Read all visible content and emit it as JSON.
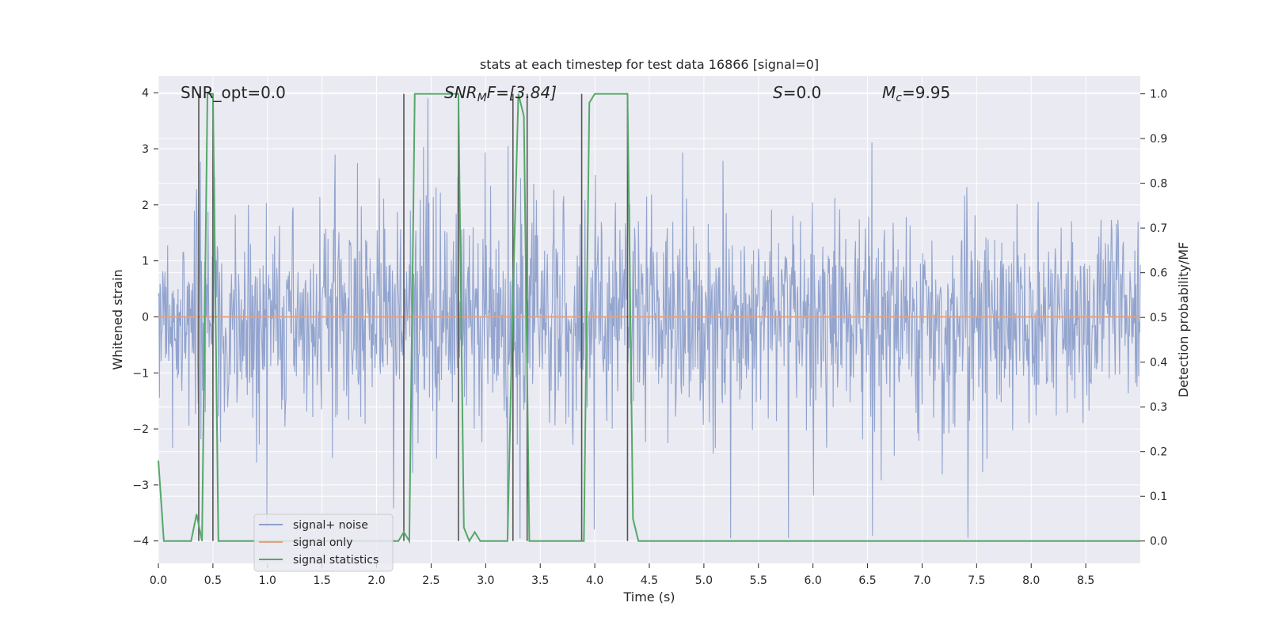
{
  "chart_data": {
    "type": "line",
    "title": "stats at each timestep for test data 16866 [signal=0]",
    "xlabel": "Time (s)",
    "ylabel": "Whitened strain",
    "ylabel_right": "Detection probability/MF",
    "xlim": [
      0.0,
      9.0
    ],
    "ylim": [
      -4.4,
      4.3
    ],
    "ylim_right": [
      -0.05,
      1.04
    ],
    "grid": true,
    "legend_position": "lower-left",
    "x_ticks": [
      0.0,
      0.5,
      1.0,
      1.5,
      2.0,
      2.5,
      3.0,
      3.5,
      4.0,
      4.5,
      5.0,
      5.5,
      6.0,
      6.5,
      7.0,
      7.5,
      8.0,
      8.5
    ],
    "x_tick_labels": [
      "0.0",
      "0.5",
      "1.0",
      "1.5",
      "2.0",
      "2.5",
      "3.0",
      "3.5",
      "4.0",
      "4.5",
      "5.0",
      "5.5",
      "6.0",
      "6.5",
      "7.0",
      "7.5",
      "8.0",
      "8.5"
    ],
    "y_ticks": [
      4,
      3,
      2,
      1,
      0,
      -1,
      -2,
      -3,
      -4
    ],
    "y_tick_labels": [
      "4",
      "3",
      "2",
      "1",
      "0",
      "−1",
      "−2",
      "−3",
      "−4"
    ],
    "y_ticks_right": [
      1.0,
      0.9,
      0.8,
      0.7,
      0.6,
      0.5,
      0.4,
      0.3,
      0.2,
      0.1,
      0.0
    ],
    "y_tick_labels_right": [
      "1.0",
      "0.9",
      "0.8",
      "0.7",
      "0.6",
      "0.5",
      "0.4",
      "0.3",
      "0.2",
      "0.1",
      "0.0"
    ],
    "annotations": {
      "snr_opt": "SNR_opt=0.0",
      "snr_mf_main": "SNR",
      "snr_mf_sub": "M",
      "snr_mf_rest": "F=[3.84]",
      "s_var": "S",
      "s_rest": "=0.0",
      "mc_main": "M",
      "mc_sub": "c",
      "mc_rest": "=9.95"
    },
    "series": [
      {
        "name": "signal+ noise",
        "color": "#8da0cb",
        "axis": "left",
        "kind": "noise",
        "sigma": 0.85,
        "n_samples": 1800
      },
      {
        "name": "signal only",
        "color": "#e5a17e",
        "axis": "left",
        "x": [
          0.0,
          9.0
        ],
        "y": [
          0.0,
          0.0
        ]
      },
      {
        "name": "signal statistics",
        "color": "#55a868",
        "axis": "right",
        "x": [
          0.0,
          0.05,
          0.1,
          0.15,
          0.2,
          0.25,
          0.3,
          0.35,
          0.4,
          0.45,
          0.5,
          0.55,
          0.6,
          0.65,
          0.7,
          0.75,
          0.8,
          0.85,
          0.9,
          0.95,
          1.0,
          1.05,
          1.1,
          1.15,
          1.2,
          1.25,
          1.3,
          1.35,
          1.4,
          1.45,
          1.5,
          1.55,
          1.6,
          1.65,
          1.7,
          1.75,
          1.8,
          1.85,
          1.9,
          1.95,
          2.0,
          2.05,
          2.1,
          2.15,
          2.2,
          2.25,
          2.3,
          2.35,
          2.4,
          2.45,
          2.5,
          2.55,
          2.6,
          2.65,
          2.7,
          2.75,
          2.8,
          2.85,
          2.9,
          2.95,
          3.0,
          3.05,
          3.1,
          3.15,
          3.2,
          3.25,
          3.3,
          3.35,
          3.4,
          3.45,
          3.5,
          3.55,
          3.6,
          3.65,
          3.7,
          3.75,
          3.8,
          3.85,
          3.9,
          3.95,
          4.0,
          4.05,
          4.1,
          4.15,
          4.2,
          4.25,
          4.3,
          4.35,
          4.4,
          4.45,
          4.5,
          4.55,
          4.6,
          4.65,
          4.7,
          4.75,
          4.8,
          4.85,
          4.9,
          4.95,
          5.0,
          5.05,
          5.1,
          5.15,
          5.2,
          5.25,
          5.3,
          5.35,
          5.4,
          5.45,
          5.5,
          5.55,
          5.6,
          5.65,
          5.7,
          5.75,
          5.8,
          5.85,
          5.9,
          5.95,
          6.0,
          6.05,
          6.1,
          6.15,
          6.2,
          6.25,
          6.3,
          6.35,
          6.4,
          6.45,
          6.5,
          6.55,
          6.6,
          6.65,
          6.7,
          6.75,
          6.8,
          6.85,
          6.9,
          6.95,
          7.0,
          7.05,
          7.1,
          7.15,
          7.2,
          7.25,
          7.3,
          7.35,
          7.4,
          7.45,
          7.5,
          7.55,
          7.6,
          7.65,
          7.7,
          7.75,
          7.8,
          7.85,
          7.9,
          7.95,
          8.0,
          8.05,
          8.1,
          8.15,
          8.2,
          8.25,
          8.3,
          8.35,
          8.4,
          8.45,
          8.5,
          8.55,
          8.6,
          8.65,
          8.7,
          8.75,
          8.8,
          8.85,
          8.9,
          8.95,
          9.0
        ],
        "y": [
          0.18,
          0.0,
          0.0,
          0.0,
          0.0,
          0.0,
          0.0,
          0.06,
          0.0,
          1.0,
          1.0,
          0.0,
          0.0,
          0.0,
          0.0,
          0.0,
          0.0,
          0.0,
          0.0,
          0.0,
          0.0,
          0.0,
          0.0,
          0.0,
          0.0,
          0.0,
          0.0,
          0.0,
          0.0,
          0.0,
          0.0,
          0.0,
          0.0,
          0.0,
          0.0,
          0.0,
          0.0,
          0.0,
          0.0,
          0.0,
          0.0,
          0.0,
          0.0,
          0.0,
          0.0,
          0.02,
          0.0,
          1.0,
          1.0,
          1.0,
          1.0,
          1.0,
          1.0,
          1.0,
          1.0,
          1.0,
          0.03,
          0.0,
          0.02,
          0.0,
          0.0,
          0.0,
          0.0,
          0.0,
          0.0,
          0.55,
          1.0,
          0.95,
          0.0,
          0.0,
          0.0,
          0.0,
          0.0,
          0.0,
          0.0,
          0.0,
          0.0,
          0.0,
          0.0,
          0.98,
          1.0,
          1.0,
          1.0,
          1.0,
          1.0,
          1.0,
          1.0,
          0.05,
          0.0,
          0.0,
          0.0,
          0.0,
          0.0,
          0.0,
          0.0,
          0.0,
          0.0,
          0.0,
          0.0,
          0.0,
          0.0,
          0.0,
          0.0,
          0.0,
          0.0,
          0.0,
          0.0,
          0.0,
          0.0,
          0.0,
          0.0,
          0.0,
          0.0,
          0.0,
          0.0,
          0.0,
          0.0,
          0.0,
          0.0,
          0.0,
          0.0,
          0.0,
          0.0,
          0.0,
          0.0,
          0.0,
          0.0,
          0.0,
          0.0,
          0.0,
          0.0,
          0.0,
          0.0,
          0.0,
          0.0,
          0.0,
          0.0,
          0.0,
          0.0,
          0.0,
          0.0,
          0.0,
          0.0,
          0.0,
          0.0,
          0.0,
          0.0,
          0.0,
          0.0,
          0.0,
          0.0,
          0.0,
          0.0,
          0.0,
          0.0,
          0.0,
          0.0,
          0.0,
          0.0,
          0.0,
          0.0,
          0.0,
          0.0,
          0.0,
          0.0,
          0.0,
          0.0,
          0.0,
          0.0,
          0.0,
          0.0,
          0.0,
          0.0,
          0.0,
          0.0,
          0.0,
          0.0,
          0.0,
          0.0,
          0.0,
          0.0
        ]
      }
    ],
    "vertical_lines": {
      "color": "#555555",
      "x": [
        0.37,
        0.5,
        2.25,
        2.75,
        3.25,
        3.38,
        3.88,
        4.3
      ]
    }
  }
}
